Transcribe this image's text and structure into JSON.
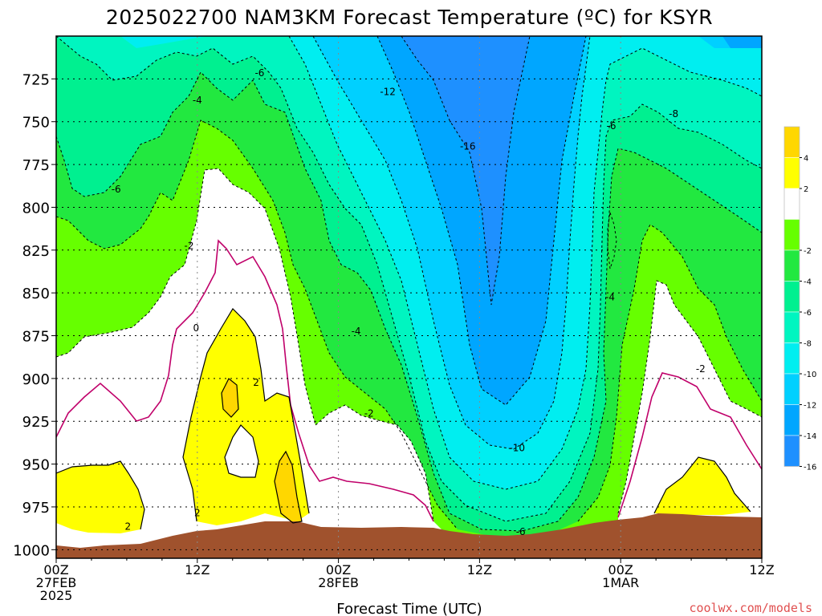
{
  "title": "2025022700 NAM3KM Forecast Temperature (ºC) for KSYR",
  "credit": "coolwx.com/models",
  "colors": {
    "ground": "#a0522d",
    "c_m16_m18": "#1e90ff",
    "c_m14_m16": "#00a6ff",
    "c_m12_m14": "#00d0ff",
    "c_m10_m12": "#00eef0",
    "c_m8_m10": "#00f5c0",
    "c_m6_m8": "#00f090",
    "c_m4_m6": "#22e840",
    "c_m2_m4": "#66ff00",
    "c_0_m2": "#ffffff",
    "c_0_2": "#ffffff",
    "c_2_4": "#ffff00",
    "c_4_6": "#ffd700",
    "zero_line": "#c0006a"
  },
  "chart_data": {
    "type": "heatmap",
    "title": "2025022700 NAM3KM Forecast Temperature (ºC) for KSYR",
    "xlabel": "Forecast Time (UTC)",
    "ylabel": "",
    "y_axis": {
      "unit": "hPa",
      "range": [
        1005,
        700
      ],
      "ticks": [
        "725",
        "750",
        "775",
        "800",
        "825",
        "850",
        "875",
        "900",
        "925",
        "950",
        "975",
        "1000"
      ]
    },
    "x_axis": {
      "range_hours": [
        0,
        60
      ],
      "ticks": [
        {
          "l1": "00Z",
          "l2": "27FEB",
          "l3": "2025"
        },
        {
          "l1": "12Z",
          "l2": "",
          "l3": ""
        },
        {
          "l1": "00Z",
          "l2": "28FEB",
          "l3": ""
        },
        {
          "l1": "12Z",
          "l2": "",
          "l3": ""
        },
        {
          "l1": "00Z",
          "l2": "1MAR",
          "l3": ""
        },
        {
          "l1": "12Z",
          "l2": "",
          "l3": ""
        }
      ]
    },
    "colorbar": {
      "labels": [
        "4",
        "2",
        "-2",
        "-4",
        "-6",
        "-8",
        "-10",
        "-12",
        "-14",
        "-16"
      ]
    },
    "contour_labels": [
      {
        "text": "-6",
        "x": 17.3,
        "y": 721
      },
      {
        "text": "-4",
        "x": 12.0,
        "y": 737
      },
      {
        "text": "-12",
        "x": 28.2,
        "y": 732
      },
      {
        "text": "-16",
        "x": 35.0,
        "y": 764
      },
      {
        "text": "-6",
        "x": 47.2,
        "y": 752
      },
      {
        "text": "-8",
        "x": 52.5,
        "y": 745
      },
      {
        "text": "-6",
        "x": 5.1,
        "y": 789
      },
      {
        "text": "-2",
        "x": 11.3,
        "y": 822
      },
      {
        "text": "-4",
        "x": 47.1,
        "y": 852
      },
      {
        "text": "0",
        "x": 11.9,
        "y": 870
      },
      {
        "text": "-4",
        "x": 25.5,
        "y": 872
      },
      {
        "text": "-2",
        "x": 54.8,
        "y": 894
      },
      {
        "text": "2",
        "x": 17.0,
        "y": 902
      },
      {
        "text": "-2",
        "x": 26.6,
        "y": 920
      },
      {
        "text": "-10",
        "x": 39.2,
        "y": 940
      },
      {
        "text": "2",
        "x": 12.0,
        "y": 978
      },
      {
        "text": "2",
        "x": 6.1,
        "y": 986
      },
      {
        "text": "-6",
        "x": 39.5,
        "y": 989
      }
    ]
  }
}
